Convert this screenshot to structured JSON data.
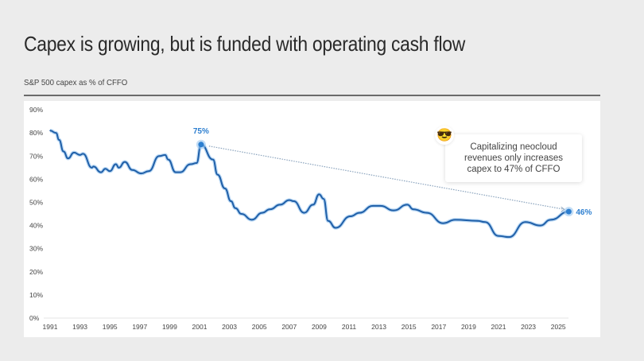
{
  "title": "Capex is growing, but is funded with operating cash flow",
  "subtitle": "S&P 500 capex as % of CFFO",
  "colors": {
    "line": "#1f5fa8",
    "glow": "#9cc8f0",
    "label": "#2d7fd0",
    "arrow": "#8aa3bd"
  },
  "callout": {
    "icon": "smiling-face-with-sunglasses",
    "emoji": "😎",
    "text": "Capitalizing neocloud revenues only increases capex to 47% of CFFO"
  },
  "chart_data": {
    "type": "line",
    "title": "S&P 500 capex as % of CFFO",
    "ylim": [
      0,
      90
    ],
    "yticks": [
      "0%",
      "10%",
      "20%",
      "30%",
      "40%",
      "50%",
      "60%",
      "70%",
      "80%",
      "90%"
    ],
    "xticks": [
      "1991",
      "1993",
      "1995",
      "1997",
      "1999",
      "2001",
      "2003",
      "2005",
      "2007",
      "2009",
      "2011",
      "2013",
      "2015",
      "2017",
      "2019",
      "2021",
      "2023",
      "2025"
    ],
    "grid": false,
    "x": [
      1991.0,
      1991.4,
      1991.6,
      1991.9,
      1992.2,
      1992.6,
      1993.0,
      1993.2,
      1993.8,
      1993.9,
      1994.4,
      1994.7,
      1995.0,
      1995.4,
      1995.6,
      1996.0,
      1996.5,
      1997.1,
      1997.6,
      1998.3,
      1998.7,
      1998.9,
      1999.4,
      1999.7,
      2000.4,
      2000.8,
      2001.1,
      2001.9,
      2002.2,
      2002.7,
      2003.1,
      2003.4,
      2003.8,
      2004.5,
      2005.2,
      2005.7,
      2006.4,
      2007.0,
      2007.3,
      2008.0,
      2008.6,
      2009.0,
      2009.3,
      2009.6,
      2010.1,
      2011.1,
      2011.7,
      2012.6,
      2013.1,
      2014.0,
      2014.9,
      2015.3,
      2016.2,
      2017.3,
      2018.1,
      2019.6,
      2020.1,
      2021.0,
      2021.7,
      2022.8,
      2023.8,
      2024.5,
      2025.7
    ],
    "values": [
      81,
      80,
      77,
      72,
      69,
      71.5,
      70.5,
      71,
      65,
      65.5,
      63,
      64.5,
      63.5,
      66.5,
      65,
      67.5,
      64,
      62.5,
      63.5,
      70,
      70.5,
      68.5,
      63,
      63,
      66.5,
      67,
      75,
      68.5,
      62,
      56,
      50.5,
      47.5,
      45,
      42.5,
      45.5,
      47,
      49,
      51,
      50.5,
      45.5,
      49,
      53.5,
      51.5,
      42,
      39,
      44,
      45.5,
      48.5,
      48.5,
      46.5,
      49,
      47,
      45.5,
      41,
      42.5,
      42,
      41.5,
      35.5,
      35,
      41.5,
      40,
      42.5,
      46
    ],
    "annotations": [
      {
        "label": "75%",
        "x": 2001.1,
        "y": 75
      },
      {
        "label": "46%",
        "x": 2025.7,
        "y": 46
      }
    ],
    "trend_arrow": {
      "from": [
        2001.1,
        75
      ],
      "to": [
        2025.4,
        47
      ]
    }
  }
}
